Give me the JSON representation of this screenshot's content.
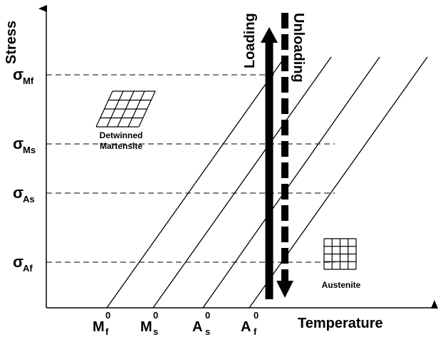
{
  "axes": {
    "y_label": "Stress",
    "x_label": "Temperature"
  },
  "arrows": {
    "loading": "Loading",
    "unloading": "Unloading"
  },
  "stress_levels": [
    {
      "symbol": "σ",
      "subscript": "Mf"
    },
    {
      "symbol": "σ",
      "subscript": "Ms"
    },
    {
      "symbol": "σ",
      "subscript": "As"
    },
    {
      "symbol": "σ",
      "subscript": "Af"
    }
  ],
  "temperatures": [
    {
      "symbol": "M",
      "superscript": "0",
      "subscript": "f"
    },
    {
      "symbol": "M",
      "superscript": "0",
      "subscript": "s"
    },
    {
      "symbol": "A",
      "superscript": "0",
      "subscript": "s"
    },
    {
      "symbol": "A",
      "superscript": "0",
      "subscript": "f"
    }
  ],
  "regions": {
    "martensite": [
      "Detwinned",
      "Martensite"
    ],
    "austenite": "Austenite"
  }
}
